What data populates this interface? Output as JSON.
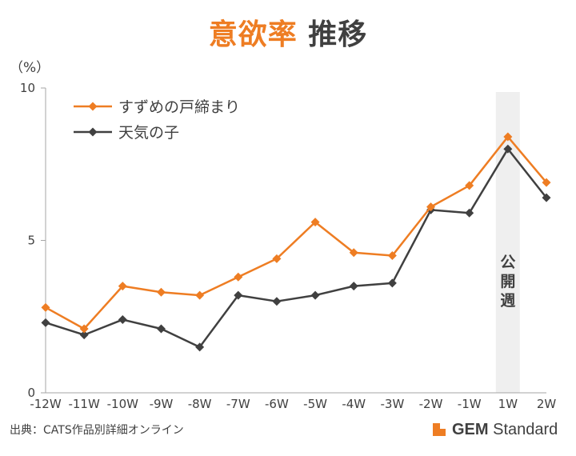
{
  "header": {
    "title_accent": "意欲率",
    "title_rest": "推移"
  },
  "footer": {
    "source": "出典：CATS作品別詳細オンライン",
    "brand_bold": "GEM",
    "brand_rest": " Standard"
  },
  "chart_data": {
    "type": "line",
    "title": "意欲率 推移",
    "ylabel": "（%）",
    "ylim": [
      0,
      10
    ],
    "yticks": [
      "0",
      "5",
      "10"
    ],
    "categories": [
      "-12W",
      "-11W",
      "-10W",
      "-9W",
      "-8W",
      "-7W",
      "-6W",
      "-5W",
      "-4W",
      "-3W",
      "-2W",
      "-1W",
      "1W",
      "2W"
    ],
    "series": [
      {
        "name": "すずめの戸締まり",
        "color": "#ee7d23",
        "values": [
          2.8,
          2.1,
          3.5,
          3.3,
          3.2,
          3.8,
          4.4,
          5.6,
          4.6,
          4.5,
          6.1,
          6.8,
          8.4,
          6.9
        ]
      },
      {
        "name": "天気の子",
        "color": "#404040",
        "values": [
          2.3,
          1.9,
          2.4,
          2.1,
          1.5,
          3.2,
          3.0,
          3.2,
          3.5,
          3.6,
          6.0,
          5.9,
          8.0,
          6.4
        ]
      }
    ],
    "highlight": {
      "category": "1W",
      "label": "公開週",
      "color": "#efefef"
    },
    "legend": "top-left",
    "grid": false
  }
}
